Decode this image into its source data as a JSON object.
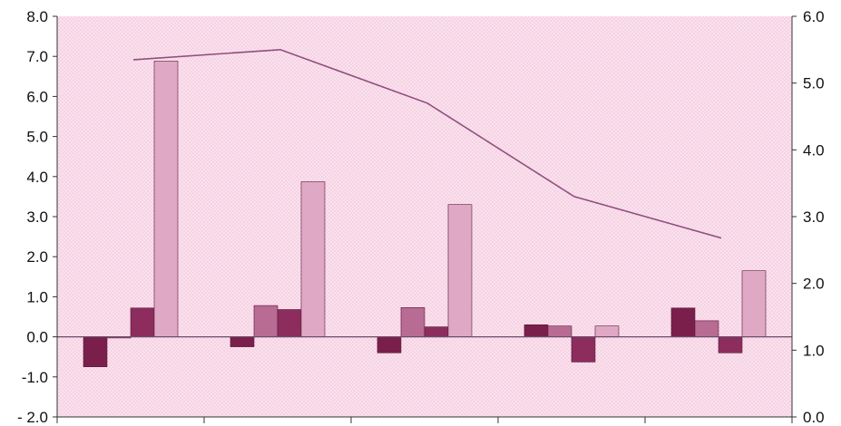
{
  "chart_data": {
    "type": "bar",
    "title": "",
    "xlabel": "",
    "ylabel": "",
    "categories": [
      "",
      "",
      "",
      "",
      ""
    ],
    "ylim": [
      -2,
      8
    ],
    "y2lim": [
      0,
      6
    ],
    "yticks": [
      "8.0",
      "7.0",
      "6.0",
      "5.0",
      "4.0",
      "3.0",
      "2.0",
      "1.0",
      "0.0",
      "-1.0",
      "- 2.0"
    ],
    "y2ticks": [
      "6.0",
      "5.0",
      "4.0",
      "3.0",
      "2.0",
      "1.0",
      "0.0"
    ],
    "grid": false,
    "series": [
      {
        "values": [
          -0.75,
          -0.25,
          -0.4,
          0.3,
          0.72
        ],
        "color": "#7a1f4b"
      },
      {
        "values": [
          -0.03,
          0.78,
          0.73,
          0.27,
          0.4
        ],
        "color": "#b86b93"
      },
      {
        "values": [
          0.72,
          0.68,
          0.25,
          -0.63,
          -0.4
        ],
        "color": "#8c2d5d"
      },
      {
        "values": [
          6.88,
          3.87,
          3.3,
          0.27,
          1.65
        ],
        "color": "#dfa8c5"
      }
    ],
    "line_series": {
      "axis": "right",
      "values": [
        5.35,
        5.5,
        4.7,
        3.3,
        2.68
      ],
      "color": "#8f4f7e"
    },
    "colors": {
      "plot_background": "#fbe1ee",
      "plot_background_dot": "#eec2d7",
      "axis": "#333333",
      "zero_line": "#6d4a68"
    }
  }
}
